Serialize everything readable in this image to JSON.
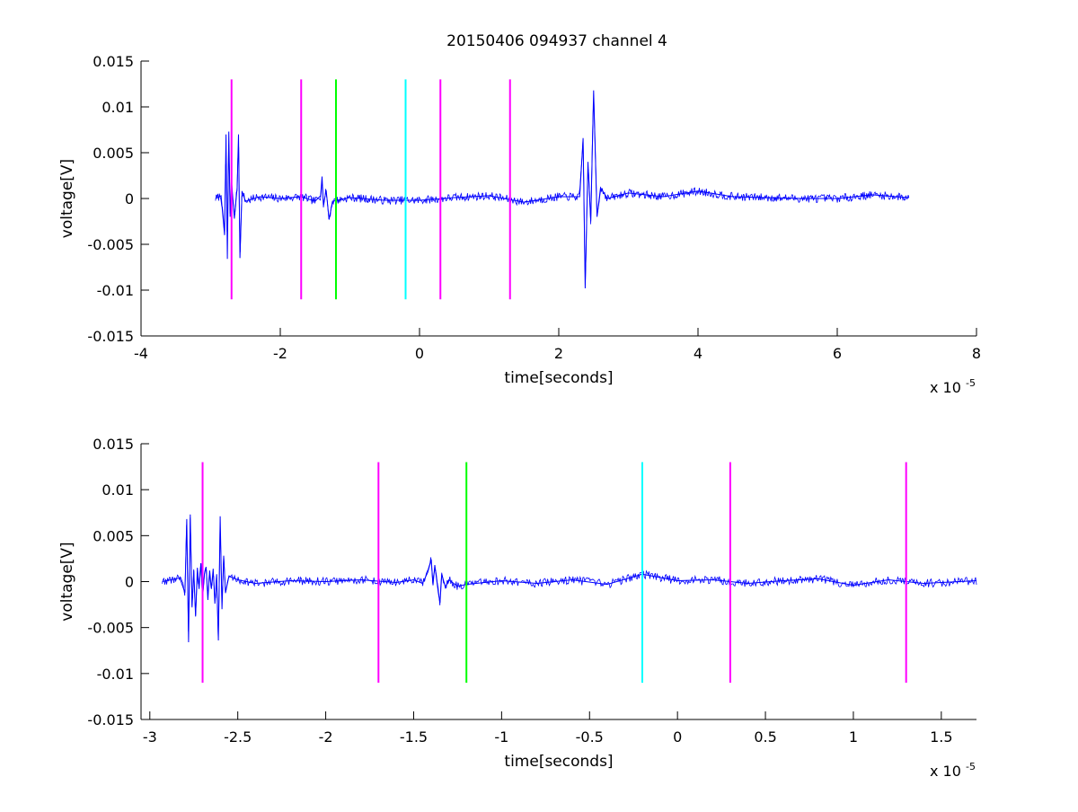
{
  "figure_title": "20150406 094937 channel 4",
  "chart_data": [
    {
      "type": "line",
      "title": "20150406 094937 channel 4",
      "xlabel": "time[seconds]",
      "ylabel": "voltage[V]",
      "x_scale_label": "x 10",
      "x_scale_exponent": "-5",
      "xlim": [
        -4e-05,
        8e-05
      ],
      "ylim": [
        -0.015,
        0.015
      ],
      "x_ticks": [
        -4e-05,
        -2e-05,
        0,
        2e-05,
        4e-05,
        6e-05,
        8e-05
      ],
      "x_tick_labels": [
        "-4",
        "-2",
        "0",
        "2",
        "4",
        "6",
        "8"
      ],
      "y_ticks": [
        -0.015,
        -0.01,
        -0.005,
        0,
        0.005,
        0.01,
        0.015
      ],
      "y_tick_labels": [
        "-0.015",
        "-0.01",
        "-0.005",
        "0",
        "0.005",
        "0.01",
        "0.015"
      ],
      "grid": false,
      "series": [
        {
          "color": "#0000ff",
          "x_range": [
            -2.93e-05,
            7.03e-05
          ],
          "description": "noisy voltage trace",
          "values_x": [
            -2.93e-05,
            -2.85e-05,
            -2.8e-05,
            -2.78e-05,
            -2.76e-05,
            -2.74e-05,
            -2.72e-05,
            -2.7e-05,
            -2.66e-05,
            -2.62e-05,
            -2.6e-05,
            -2.58e-05,
            -2.55e-05,
            -2.5e-05,
            -2.3e-05,
            -2e-05,
            -1.7e-05,
            -1.5e-05,
            -1.42e-05,
            -1.4e-05,
            -1.38e-05,
            -1.34e-05,
            -1.3e-05,
            -1.25e-05,
            -1e-05,
            -5e-06,
            0,
            5e-06,
            1e-05,
            1.5e-05,
            2e-05,
            2.3e-05,
            2.35e-05,
            2.38e-05,
            2.42e-05,
            2.46e-05,
            2.5e-05,
            2.55e-05,
            2.6e-05,
            2.7e-05,
            3e-05,
            3.5e-05,
            4e-05,
            4.5e-05,
            5e-05,
            5.5e-05,
            6e-05,
            6.5e-05,
            7.03e-05
          ],
          "values_y": [
            0.0,
            0.0003,
            -0.004,
            0.007,
            -0.0066,
            0.0073,
            -0.002,
            0.0018,
            -0.0022,
            0.0012,
            0.007,
            -0.0065,
            0.0008,
            -0.0003,
            0.0002,
            0.0,
            0.0002,
            -0.0003,
            0.0003,
            0.0024,
            -0.0007,
            0.0009,
            -0.0023,
            -0.0003,
            0.0001,
            -0.0002,
            -0.0002,
            0.0001,
            0.0003,
            -0.0004,
            0.0002,
            0.0002,
            0.0066,
            -0.0098,
            0.004,
            -0.0025,
            0.0118,
            -0.002,
            0.0012,
            0.0,
            0.0006,
            0.0002,
            0.0008,
            0.0002,
            0.0001,
            0.0,
            0.0,
            0.0004,
            0.0001
          ]
        }
      ],
      "markers": [
        {
          "x": -2.7e-05,
          "color": "#ff00ff"
        },
        {
          "x": -1.7e-05,
          "color": "#ff00ff"
        },
        {
          "x": -1.2e-05,
          "color": "#00ff00"
        },
        {
          "x": -2e-06,
          "color": "#00ffff"
        },
        {
          "x": 3e-06,
          "color": "#ff00ff"
        },
        {
          "x": 1.3e-05,
          "color": "#ff00ff"
        }
      ],
      "marker_y_range": [
        -0.011,
        0.013
      ]
    },
    {
      "type": "line",
      "title": "",
      "xlabel": "time[seconds]",
      "ylabel": "voltage[V]",
      "x_scale_label": "x 10",
      "x_scale_exponent": "-5",
      "xlim": [
        -3.05e-05,
        1.7e-05
      ],
      "ylim": [
        -0.015,
        0.015
      ],
      "x_ticks": [
        -3e-05,
        -2.5e-05,
        -2e-05,
        -1.5e-05,
        -1e-05,
        -5e-06,
        0,
        5e-06,
        1e-05,
        1.5e-05
      ],
      "x_tick_labels": [
        "-3",
        "-2.5",
        "-2",
        "-1.5",
        "-1",
        "-0.5",
        "0",
        "0.5",
        "1",
        "1.5"
      ],
      "y_ticks": [
        -0.015,
        -0.01,
        -0.005,
        0,
        0.005,
        0.01,
        0.015
      ],
      "y_tick_labels": [
        "-0.015",
        "-0.01",
        "-0.005",
        "0",
        "0.005",
        "0.01",
        "0.015"
      ],
      "grid": false,
      "series": [
        {
          "color": "#0000ff",
          "values_x": [
            -2.93e-05,
            -2.88e-05,
            -2.83e-05,
            -2.8e-05,
            -2.79e-05,
            -2.78e-05,
            -2.77e-05,
            -2.76e-05,
            -2.75e-05,
            -2.74e-05,
            -2.73e-05,
            -2.72e-05,
            -2.71e-05,
            -2.7e-05,
            -2.69e-05,
            -2.68e-05,
            -2.67e-05,
            -2.66e-05,
            -2.65e-05,
            -2.64e-05,
            -2.63e-05,
            -2.62e-05,
            -2.61e-05,
            -2.6e-05,
            -2.59e-05,
            -2.58e-05,
            -2.57e-05,
            -2.55e-05,
            -2.5e-05,
            -2.4e-05,
            -2.2e-05,
            -2e-05,
            -1.8e-05,
            -1.6e-05,
            -1.5e-05,
            -1.45e-05,
            -1.42e-05,
            -1.4e-05,
            -1.39e-05,
            -1.38e-05,
            -1.36e-05,
            -1.35e-05,
            -1.34e-05,
            -1.32e-05,
            -1.3e-05,
            -1.25e-05,
            -1.2e-05,
            -1e-05,
            -8e-06,
            -6e-06,
            -4e-06,
            -2e-06,
            0,
            2e-06,
            4e-06,
            6e-06,
            8e-06,
            1e-05,
            1.2e-05,
            1.4e-05,
            1.7e-05
          ],
          "values_y": [
            0.0,
            0.0002,
            0.0004,
            -0.0012,
            0.0068,
            -0.0066,
            0.0073,
            -0.0028,
            0.0012,
            -0.0038,
            0.0015,
            -0.0008,
            0.002,
            -0.0016,
            0.0008,
            0.0016,
            -0.002,
            0.0012,
            -0.0008,
            0.0014,
            -0.0024,
            0.0008,
            -0.0064,
            0.0071,
            -0.003,
            0.0028,
            -0.0012,
            0.0006,
            0.0002,
            -0.0002,
            0.0001,
            0.0,
            0.0002,
            -0.0001,
            0.0002,
            -0.0002,
            0.001,
            0.0024,
            -0.0004,
            0.0018,
            -0.0012,
            -0.0023,
            0.0008,
            -0.0006,
            0.0002,
            -0.0005,
            -0.0003,
            0.0001,
            -0.0002,
            0.0002,
            -0.0003,
            0.0008,
            0.0001,
            0.0002,
            -0.0002,
            0.0001,
            0.0003,
            -0.0004,
            0.0002,
            -0.0002,
            0.0001
          ]
        }
      ],
      "markers": [
        {
          "x": -2.7e-05,
          "color": "#ff00ff"
        },
        {
          "x": -1.7e-05,
          "color": "#ff00ff"
        },
        {
          "x": -1.2e-05,
          "color": "#00ff00"
        },
        {
          "x": -2e-06,
          "color": "#00ffff"
        },
        {
          "x": 3e-06,
          "color": "#ff00ff"
        },
        {
          "x": 1.3e-05,
          "color": "#ff00ff"
        }
      ],
      "marker_y_range": [
        -0.011,
        0.013
      ]
    }
  ]
}
